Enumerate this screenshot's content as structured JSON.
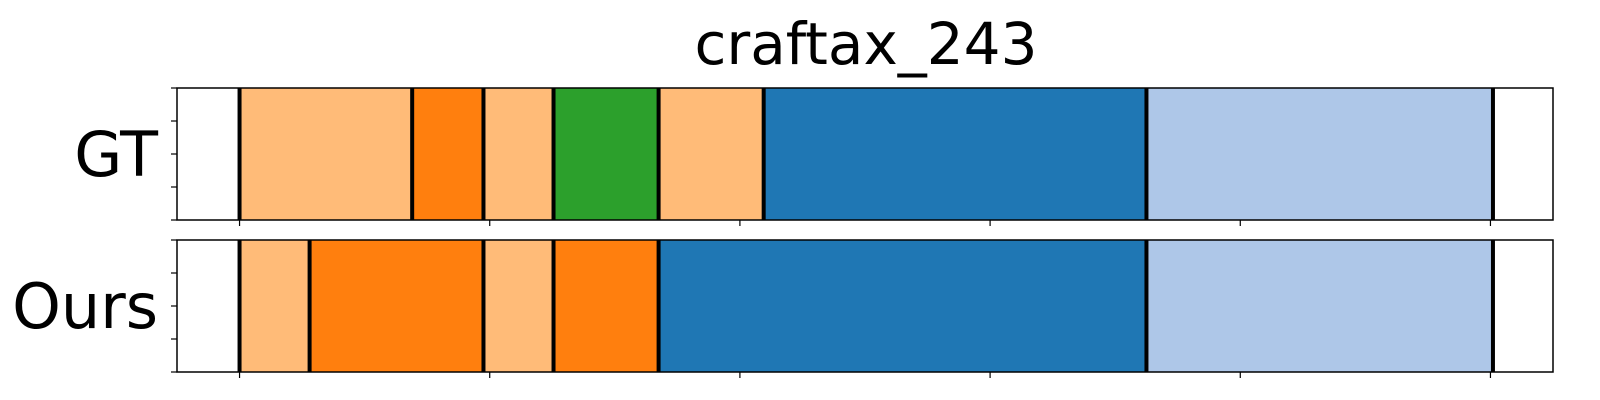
{
  "chart_data": {
    "type": "segmentation-timeline",
    "title": "craftax_243",
    "xlim": [
      0,
      1100
    ],
    "rows": [
      {
        "label": "GT",
        "segments": [
          {
            "start": 50,
            "end": 188,
            "color": "#ffbb78"
          },
          {
            "start": 188,
            "end": 245,
            "color": "#ff7f0e"
          },
          {
            "start": 245,
            "end": 301,
            "color": "#ffbb78"
          },
          {
            "start": 301,
            "end": 385,
            "color": "#2ca02c"
          },
          {
            "start": 385,
            "end": 469,
            "color": "#ffbb78"
          },
          {
            "start": 469,
            "end": 775,
            "color": "#1f77b4"
          },
          {
            "start": 775,
            "end": 1052,
            "color": "#aec7e8"
          }
        ]
      },
      {
        "label": "Ours",
        "segments": [
          {
            "start": 50,
            "end": 106,
            "color": "#ffbb78"
          },
          {
            "start": 106,
            "end": 245,
            "color": "#ff7f0e"
          },
          {
            "start": 245,
            "end": 301,
            "color": "#ffbb78"
          },
          {
            "start": 301,
            "end": 385,
            "color": "#ff7f0e"
          },
          {
            "start": 385,
            "end": 775,
            "color": "#1f77b4"
          },
          {
            "start": 775,
            "end": 1052,
            "color": "#aec7e8"
          }
        ]
      }
    ],
    "x_ticks": [
      50,
      250,
      450,
      650,
      850,
      1050
    ],
    "x_tick_labels_shown": false,
    "y_tick_count": 5,
    "grid": false,
    "legend": "none"
  }
}
